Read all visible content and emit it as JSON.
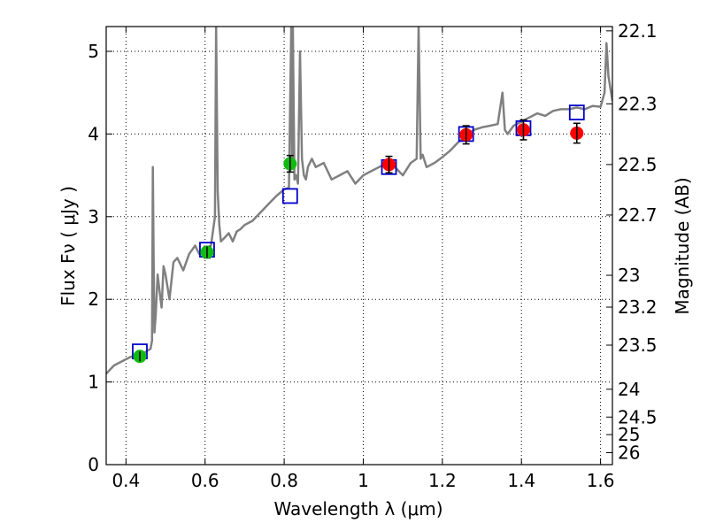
{
  "chart_data": {
    "type": "scatter",
    "title": "",
    "xlabel": "Wavelength  λ (μm)",
    "ylabel": "Flux  Fν  ( μJy )",
    "ylabel_right": "Magnitude (AB)",
    "xlim": [
      0.35,
      1.63
    ],
    "ylim": [
      0,
      5.3
    ],
    "grid": true,
    "x_ticks": [
      {
        "value": 0.4,
        "label": "0.4"
      },
      {
        "value": 0.6,
        "label": "0.6"
      },
      {
        "value": 0.8,
        "label": "0.8"
      },
      {
        "value": 1.0,
        "label": "1"
      },
      {
        "value": 1.2,
        "label": "1.2"
      },
      {
        "value": 1.4,
        "label": "1.4"
      },
      {
        "value": 1.6,
        "label": "1.6"
      }
    ],
    "y_ticks": [
      {
        "value": 0,
        "label": "0"
      },
      {
        "value": 1,
        "label": "1"
      },
      {
        "value": 2,
        "label": "2"
      },
      {
        "value": 3,
        "label": "3"
      },
      {
        "value": 4,
        "label": "4"
      },
      {
        "value": 5,
        "label": "5"
      }
    ],
    "mag_ticks": [
      {
        "value": 22.1,
        "label": "22.1"
      },
      {
        "value": 22.3,
        "label": "22.3"
      },
      {
        "value": 22.5,
        "label": "22.5"
      },
      {
        "value": 22.7,
        "label": "22.7"
      },
      {
        "value": 23.0,
        "label": "23"
      },
      {
        "value": 23.2,
        "label": "23.2"
      },
      {
        "value": 23.5,
        "label": "23.5"
      },
      {
        "value": 24.0,
        "label": "24"
      },
      {
        "value": 24.5,
        "label": "24.5"
      },
      {
        "value": 25.0,
        "label": "25"
      },
      {
        "value": 26.0,
        "label": "26"
      }
    ],
    "spectrum": {
      "color": "#808080",
      "x": [
        0.35,
        0.37,
        0.39,
        0.41,
        0.43,
        0.445,
        0.455,
        0.462,
        0.466,
        0.468,
        0.47,
        0.472,
        0.475,
        0.48,
        0.485,
        0.49,
        0.495,
        0.5,
        0.51,
        0.52,
        0.53,
        0.545,
        0.56,
        0.575,
        0.585,
        0.595,
        0.605,
        0.615,
        0.625,
        0.628,
        0.632,
        0.636,
        0.64,
        0.65,
        0.66,
        0.67,
        0.68,
        0.69,
        0.7,
        0.72,
        0.74,
        0.76,
        0.78,
        0.8,
        0.812,
        0.818,
        0.82,
        0.822,
        0.826,
        0.83,
        0.835,
        0.84,
        0.845,
        0.85,
        0.855,
        0.86,
        0.87,
        0.88,
        0.9,
        0.92,
        0.94,
        0.96,
        0.98,
        1.0,
        1.02,
        1.04,
        1.06,
        1.08,
        1.1,
        1.12,
        1.135,
        1.14,
        1.145,
        1.15,
        1.16,
        1.18,
        1.2,
        1.22,
        1.24,
        1.26,
        1.28,
        1.3,
        1.32,
        1.34,
        1.352,
        1.358,
        1.365,
        1.38,
        1.4,
        1.42,
        1.44,
        1.46,
        1.48,
        1.5,
        1.52,
        1.54,
        1.56,
        1.58,
        1.6,
        1.61,
        1.615,
        1.62,
        1.63
      ],
      "y": [
        1.1,
        1.2,
        1.25,
        1.3,
        1.33,
        1.35,
        1.38,
        1.4,
        1.5,
        3.6,
        2.5,
        1.6,
        1.8,
        2.3,
        2.1,
        1.9,
        2.4,
        2.3,
        2.0,
        2.45,
        2.5,
        2.35,
        2.55,
        2.65,
        2.55,
        2.6,
        2.62,
        2.65,
        3.0,
        5.3,
        3.3,
        2.9,
        2.7,
        2.75,
        2.8,
        2.7,
        2.82,
        2.85,
        2.9,
        2.95,
        3.05,
        3.15,
        3.25,
        3.33,
        3.35,
        5.3,
        3.6,
        5.3,
        3.45,
        3.5,
        3.4,
        5.0,
        3.7,
        3.5,
        3.45,
        3.6,
        3.7,
        3.6,
        3.65,
        3.45,
        3.5,
        3.55,
        3.4,
        3.5,
        3.55,
        3.6,
        3.65,
        3.6,
        3.5,
        3.65,
        3.7,
        5.3,
        3.7,
        3.75,
        3.6,
        3.65,
        3.72,
        3.8,
        3.9,
        3.98,
        4.05,
        4.08,
        4.1,
        4.12,
        4.5,
        4.05,
        4.0,
        4.1,
        4.15,
        4.2,
        4.25,
        4.22,
        4.28,
        4.3,
        4.3,
        4.32,
        4.3,
        4.34,
        4.33,
        4.5,
        5.1,
        4.7,
        4.4
      ]
    },
    "series": [
      {
        "color": "#0000cc",
        "marker": "square-open",
        "x": [
          0.435,
          0.605,
          0.815,
          1.065,
          1.26,
          1.405,
          1.54
        ],
        "y": [
          1.37,
          2.6,
          3.25,
          3.6,
          4.0,
          4.07,
          4.26
        ]
      },
      {
        "color": "#11bb11",
        "marker": "circle",
        "x": [
          0.435,
          0.605,
          0.815
        ],
        "y": [
          1.31,
          2.57,
          3.64
        ],
        "yerr": [
          0.06,
          0.07,
          0.1
        ]
      },
      {
        "color": "#ff0000",
        "marker": "circle",
        "x": [
          1.065,
          1.26,
          1.405,
          1.54
        ],
        "y": [
          3.63,
          3.99,
          4.05,
          4.01
        ],
        "yerr": [
          0.1,
          0.11,
          0.12,
          0.12
        ]
      }
    ]
  }
}
